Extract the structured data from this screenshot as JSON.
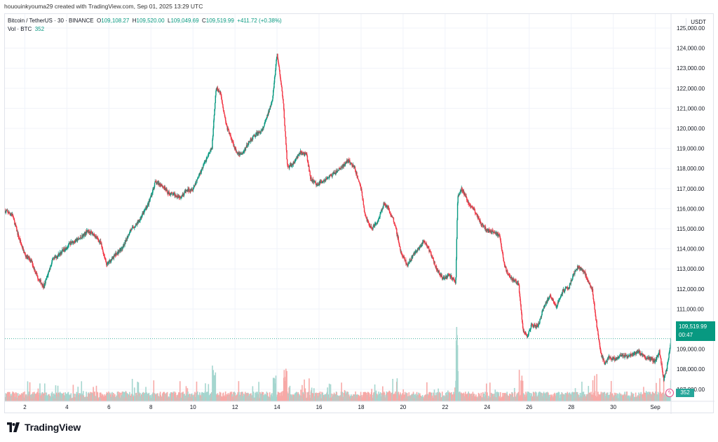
{
  "topline": "hououinkyouma29 created with TradingView.com, Sep 01, 2025 13:29 UTC",
  "header": {
    "symbol": "Bitcoin / TetherUS · 30 · BINANCE",
    "open_label": "O",
    "open": "109,108.27",
    "high_label": "H",
    "high": "109,520.00",
    "low_label": "L",
    "low": "109,049.69",
    "close_label": "C",
    "close": "109,519.99",
    "change": "+411.72 (+0.38%)",
    "vol_label": "Vol · BTC",
    "vol_value": "352"
  },
  "currency": "USDT",
  "last_price": {
    "price": "109,519.99",
    "countdown": "00:47"
  },
  "volume_badge": "352",
  "flash_icon": "lightning-icon",
  "footer": {
    "brand": "TradingView"
  },
  "colors": {
    "up": "#089981",
    "down": "#f23645",
    "vol_up": "#a5d6cf",
    "vol_down": "#f7a9a7",
    "grid": "#f0f3fa",
    "price_line": "#089981"
  },
  "chart_data": {
    "type": "candlestick",
    "x_tick_labels": [
      "2",
      "4",
      "6",
      "8",
      "10",
      "12",
      "14",
      "16",
      "18",
      "20",
      "22",
      "24",
      "26",
      "28",
      "30",
      "Sep"
    ],
    "x_tick_days": [
      2,
      4,
      6,
      8,
      10,
      12,
      14,
      16,
      18,
      20,
      22,
      24,
      26,
      28,
      30,
      32
    ],
    "x_range_days": [
      1.05,
      32.75
    ],
    "y_range": [
      106400,
      125700
    ],
    "y_ticks": [
      107000,
      108000,
      109000,
      110000,
      111000,
      112000,
      113000,
      114000,
      115000,
      116000,
      117000,
      118000,
      119000,
      120000,
      121000,
      122000,
      123000,
      124000,
      125000
    ],
    "y_tick_labels": [
      "107,000.00",
      "108,000.00",
      "109,000.00",
      "110,000.00",
      "111,000.00",
      "112,000.00",
      "113,000.00",
      "114,000.00",
      "115,000.00",
      "116,000.00",
      "117,000.00",
      "118,000.00",
      "119,000.00",
      "120,000.00",
      "121,000.00",
      "122,000.00",
      "123,000.00",
      "124,000.00",
      "125,000.00"
    ],
    "last_price": 109519.99,
    "price_path": [
      [
        1.05,
        115900
      ],
      [
        1.4,
        115700
      ],
      [
        1.7,
        114600
      ],
      [
        2.0,
        113700
      ],
      [
        2.3,
        113400
      ],
      [
        2.6,
        112600
      ],
      [
        2.9,
        112100
      ],
      [
        3.3,
        113400
      ],
      [
        3.8,
        113900
      ],
      [
        4.2,
        114300
      ],
      [
        4.6,
        114500
      ],
      [
        5.0,
        114900
      ],
      [
        5.3,
        114700
      ],
      [
        5.6,
        114300
      ],
      [
        5.9,
        113200
      ],
      [
        6.3,
        113700
      ],
      [
        6.7,
        114100
      ],
      [
        7.0,
        114900
      ],
      [
        7.3,
        115200
      ],
      [
        7.6,
        115700
      ],
      [
        7.9,
        116300
      ],
      [
        8.2,
        117300
      ],
      [
        8.5,
        117200
      ],
      [
        8.8,
        116800
      ],
      [
        9.1,
        116700
      ],
      [
        9.4,
        116600
      ],
      [
        9.7,
        116900
      ],
      [
        10.0,
        117000
      ],
      [
        10.3,
        117700
      ],
      [
        10.6,
        118400
      ],
      [
        10.9,
        119000
      ],
      [
        11.1,
        122000
      ],
      [
        11.3,
        121800
      ],
      [
        11.6,
        120100
      ],
      [
        11.9,
        119300
      ],
      [
        12.1,
        118700
      ],
      [
        12.4,
        118800
      ],
      [
        12.7,
        119400
      ],
      [
        13.0,
        119700
      ],
      [
        13.3,
        119900
      ],
      [
        13.6,
        120800
      ],
      [
        13.8,
        121600
      ],
      [
        14.0,
        123700
      ],
      [
        14.15,
        122600
      ],
      [
        14.3,
        121200
      ],
      [
        14.5,
        118000
      ],
      [
        14.8,
        118300
      ],
      [
        15.1,
        118800
      ],
      [
        15.4,
        118700
      ],
      [
        15.6,
        117500
      ],
      [
        15.9,
        117200
      ],
      [
        16.2,
        117400
      ],
      [
        16.5,
        117600
      ],
      [
        16.8,
        117800
      ],
      [
        17.1,
        118100
      ],
      [
        17.4,
        118400
      ],
      [
        17.7,
        118000
      ],
      [
        18.0,
        117000
      ],
      [
        18.2,
        115600
      ],
      [
        18.5,
        115000
      ],
      [
        18.8,
        115400
      ],
      [
        19.1,
        116300
      ],
      [
        19.3,
        116000
      ],
      [
        19.6,
        115300
      ],
      [
        19.9,
        113800
      ],
      [
        20.2,
        113200
      ],
      [
        20.5,
        113700
      ],
      [
        20.8,
        114100
      ],
      [
        21.0,
        114400
      ],
      [
        21.3,
        113800
      ],
      [
        21.6,
        113000
      ],
      [
        21.9,
        112500
      ],
      [
        22.2,
        112700
      ],
      [
        22.5,
        112300
      ],
      [
        22.6,
        116600
      ],
      [
        22.8,
        117000
      ],
      [
        23.1,
        116300
      ],
      [
        23.4,
        115900
      ],
      [
        23.7,
        115300
      ],
      [
        24.0,
        114900
      ],
      [
        24.3,
        114900
      ],
      [
        24.6,
        114600
      ],
      [
        24.8,
        113300
      ],
      [
        25.0,
        112700
      ],
      [
        25.2,
        112500
      ],
      [
        25.5,
        112200
      ],
      [
        25.7,
        110000
      ],
      [
        25.9,
        109600
      ],
      [
        26.1,
        110200
      ],
      [
        26.4,
        110100
      ],
      [
        26.7,
        111100
      ],
      [
        27.0,
        111700
      ],
      [
        27.3,
        111100
      ],
      [
        27.6,
        111900
      ],
      [
        27.9,
        112100
      ],
      [
        28.1,
        112700
      ],
      [
        28.3,
        113100
      ],
      [
        28.6,
        112900
      ],
      [
        28.8,
        112400
      ],
      [
        29.0,
        112000
      ],
      [
        29.2,
        110300
      ],
      [
        29.4,
        108800
      ],
      [
        29.6,
        108300
      ],
      [
        29.8,
        108600
      ],
      [
        30.1,
        108500
      ],
      [
        30.4,
        108700
      ],
      [
        30.7,
        108600
      ],
      [
        31.0,
        108800
      ],
      [
        31.2,
        108900
      ],
      [
        31.5,
        108600
      ],
      [
        31.8,
        108500
      ],
      [
        32.0,
        108400
      ],
      [
        32.2,
        108900
      ],
      [
        32.4,
        107500
      ],
      [
        32.55,
        108000
      ],
      [
        32.75,
        109520
      ]
    ]
  }
}
